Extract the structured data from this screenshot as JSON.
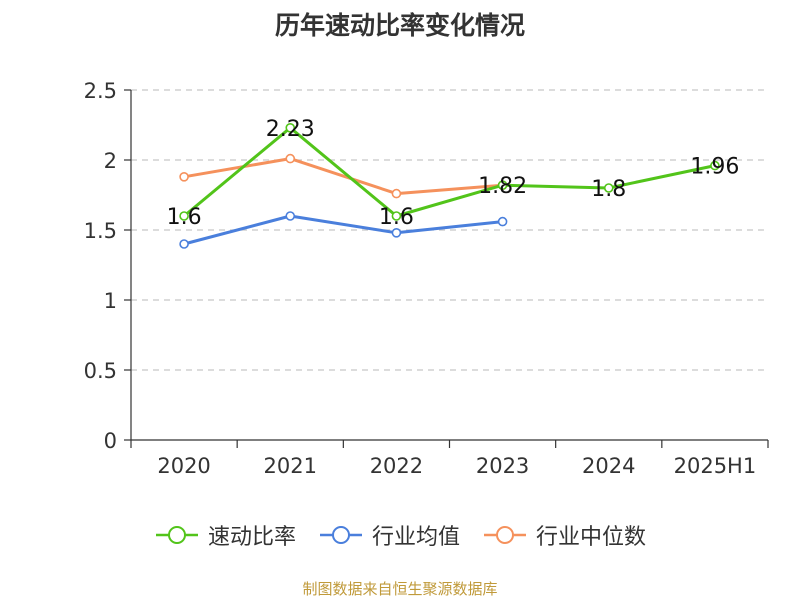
{
  "title": "历年速动比率变化情况",
  "source": "制图数据来自恒生聚源数据库",
  "chart_data": {
    "type": "line",
    "categories": [
      "2020",
      "2021",
      "2022",
      "2023",
      "2024",
      "2025H1"
    ],
    "ylim": [
      0,
      2.5
    ],
    "yticks": [
      "0",
      "0.5",
      "1",
      "1.5",
      "2",
      "2.5"
    ],
    "grid": true,
    "legend_position": "bottom",
    "series": [
      {
        "name": "速动比率",
        "color": "#52c41a",
        "values": [
          1.6,
          2.23,
          1.6,
          1.82,
          1.8,
          1.96
        ],
        "labels": [
          "1.6",
          "2.23",
          "1.6",
          "1.82",
          "1.8",
          "1.96"
        ]
      },
      {
        "name": "行业均值",
        "color": "#4a7fdc",
        "values": [
          1.4,
          1.6,
          1.48,
          1.56,
          null,
          null
        ]
      },
      {
        "name": "行业中位数",
        "color": "#f5915c",
        "values": [
          1.88,
          2.01,
          1.76,
          1.82,
          null,
          null
        ]
      }
    ]
  }
}
